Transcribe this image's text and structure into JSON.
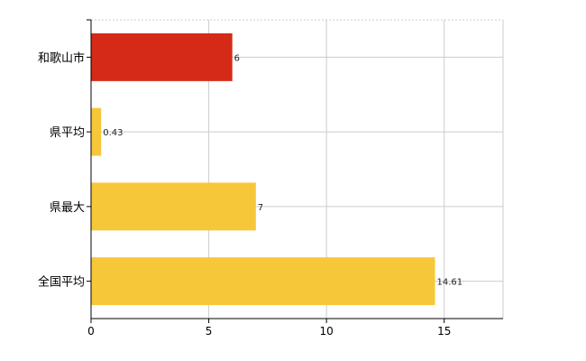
{
  "chart_data": {
    "type": "bar",
    "orientation": "horizontal",
    "categories": [
      "和歌山市",
      "県平均",
      "県最大",
      "全国平均"
    ],
    "values": [
      6,
      0.43,
      7,
      14.61
    ],
    "value_labels": [
      "6",
      "0.43",
      "7",
      "14.61"
    ],
    "bar_colors": [
      "#d42a17",
      "#f7c73a",
      "#f7c73a",
      "#f7c73a"
    ],
    "xlim": [
      0,
      17.5
    ],
    "x_ticks": [
      0,
      5,
      10,
      15
    ],
    "x_tick_labels": [
      "0",
      "5",
      "10",
      "15"
    ],
    "grid": true,
    "title": "",
    "xlabel": "",
    "ylabel": ""
  }
}
